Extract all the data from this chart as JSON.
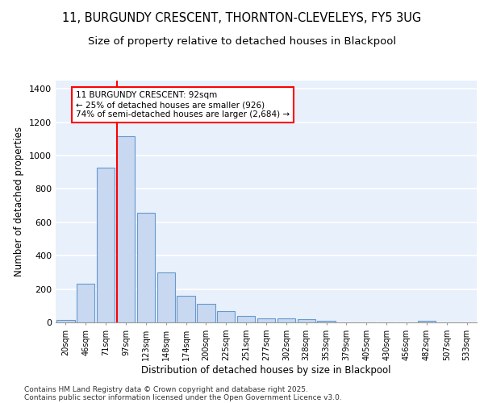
{
  "title_line1": "11, BURGUNDY CRESCENT, THORNTON-CLEVELEYS, FY5 3UG",
  "title_line2": "Size of property relative to detached houses in Blackpool",
  "xlabel": "Distribution of detached houses by size in Blackpool",
  "ylabel": "Number of detached properties",
  "bar_labels": [
    "20sqm",
    "46sqm",
    "71sqm",
    "97sqm",
    "123sqm",
    "148sqm",
    "174sqm",
    "200sqm",
    "225sqm",
    "251sqm",
    "277sqm",
    "302sqm",
    "328sqm",
    "353sqm",
    "379sqm",
    "405sqm",
    "430sqm",
    "456sqm",
    "482sqm",
    "507sqm",
    "533sqm"
  ],
  "bar_values": [
    15,
    230,
    930,
    1115,
    655,
    300,
    160,
    110,
    70,
    38,
    25,
    22,
    20,
    12,
    0,
    0,
    0,
    0,
    10,
    0,
    0
  ],
  "bar_color": "#c8d8f0",
  "bar_edge_color": "#6699cc",
  "background_color": "#e8f0fc",
  "grid_color": "#ffffff",
  "ylim": [
    0,
    1450
  ],
  "yticks": [
    0,
    200,
    400,
    600,
    800,
    1000,
    1200,
    1400
  ],
  "annotation_text_line1": "11 BURGUNDY CRESCENT: 92sqm",
  "annotation_text_line2": "← 25% of detached houses are smaller (926)",
  "annotation_text_line3": "74% of semi-detached houses are larger (2,684) →",
  "footnote_line1": "Contains HM Land Registry data © Crown copyright and database right 2025.",
  "footnote_line2": "Contains public sector information licensed under the Open Government Licence v3.0."
}
